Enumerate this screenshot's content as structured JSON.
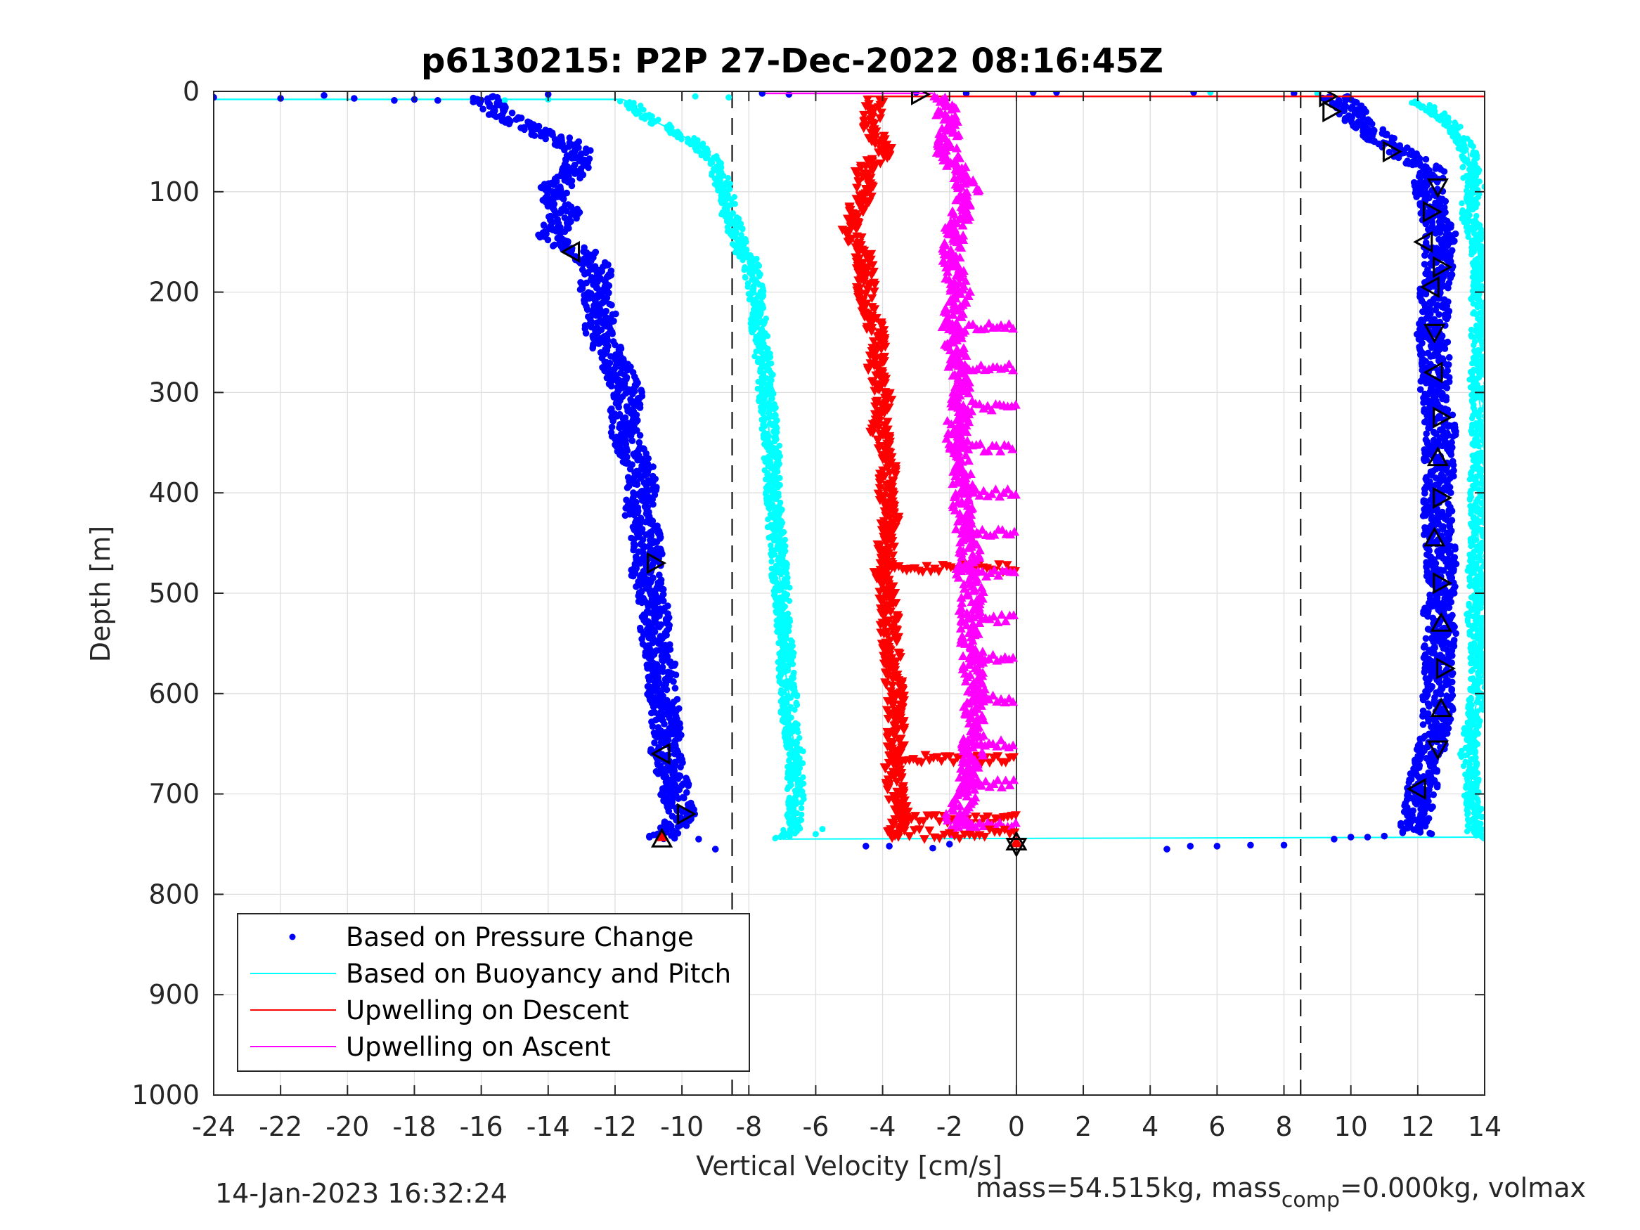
{
  "chart_data": {
    "type": "scatter",
    "title": "p6130215: P2P 27-Dec-2022 08:16:45Z",
    "xlabel": "Vertical Velocity [cm/s]",
    "ylabel": "Depth [m]",
    "xlim": [
      -24,
      14
    ],
    "ylim": [
      1000,
      0
    ],
    "y_reversed": true,
    "xticks": [
      -24,
      -22,
      -20,
      -18,
      -16,
      -14,
      -12,
      -10,
      -8,
      -6,
      -4,
      -2,
      0,
      2,
      4,
      6,
      8,
      10,
      12,
      14
    ],
    "yticks": [
      0,
      100,
      200,
      300,
      400,
      500,
      600,
      700,
      800,
      900,
      1000
    ],
    "grid": true,
    "legend_position": "bottom-left",
    "reference_lines": {
      "dashed_x": [
        -8.5,
        8.5
      ],
      "solid_x": [
        0
      ]
    },
    "colors": {
      "pressure": "#0000ff",
      "buoyancy": "#00ffff",
      "descent": "#ff0000",
      "ascent": "#ff00ff",
      "marker": "#000000"
    },
    "series": [
      {
        "name": "Based on Pressure Change",
        "style": "dots",
        "branches": [
          {
            "depth": [
              5,
              10,
              20,
              30,
              40,
              50,
              60,
              70,
              80,
              90,
              100,
              110,
              120,
              130,
              140,
              150,
              160,
              170,
              180,
              190,
              200,
              220,
              240,
              260,
              280,
              300,
              320,
              340,
              360,
              380,
              400,
              420,
              440,
              460,
              480,
              500,
              520,
              540,
              560,
              580,
              600,
              620,
              640,
              660,
              680,
              700,
              720,
              735,
              745
            ],
            "velocity": [
              -16.0,
              -15.8,
              -15.6,
              -15.0,
              -14.3,
              -13.5,
              -13.0,
              -13.1,
              -13.3,
              -13.6,
              -13.9,
              -13.7,
              -13.5,
              -13.6,
              -13.9,
              -13.8,
              -13.0,
              -12.7,
              -12.5,
              -12.6,
              -12.6,
              -12.4,
              -12.5,
              -12.2,
              -11.9,
              -11.6,
              -11.7,
              -11.7,
              -11.5,
              -11.2,
              -11.2,
              -11.3,
              -11.1,
              -11.0,
              -11.1,
              -10.9,
              -10.8,
              -10.8,
              -10.7,
              -10.6,
              -10.6,
              -10.5,
              -10.4,
              -10.5,
              -10.3,
              -10.2,
              -10.0,
              -10.3,
              -10.7
            ]
          },
          {
            "depth": [
              740,
              725,
              700,
              680,
              660,
              640,
              620,
              600,
              580,
              560,
              540,
              520,
              500,
              480,
              460,
              440,
              420,
              400,
              380,
              360,
              340,
              320,
              300,
              280,
              260,
              240,
              220,
              200,
              180,
              160,
              140,
              120,
              100,
              90,
              80,
              60,
              50,
              40,
              30,
              20,
              10,
              5
            ],
            "velocity": [
              12.0,
              11.9,
              12.1,
              12.2,
              12.4,
              12.5,
              12.6,
              12.6,
              12.6,
              12.6,
              12.7,
              12.6,
              12.7,
              12.7,
              12.7,
              12.6,
              12.6,
              12.6,
              12.7,
              12.6,
              12.7,
              12.6,
              12.5,
              12.5,
              12.5,
              12.4,
              12.5,
              12.5,
              12.6,
              12.6,
              12.7,
              12.5,
              12.3,
              12.3,
              12.4,
              11.5,
              11.0,
              10.6,
              10.2,
              10.0,
              9.8,
              9.5
            ]
          }
        ],
        "outliers": [
          [
            -24.0,
            6
          ],
          [
            -22.0,
            7
          ],
          [
            -20.7,
            4
          ],
          [
            -19.8,
            7
          ],
          [
            -18.6,
            9
          ],
          [
            -18.0,
            8
          ],
          [
            -17.3,
            9
          ],
          [
            -16.2,
            9
          ],
          [
            -14.0,
            3
          ],
          [
            -7.6,
            2
          ],
          [
            -6.8,
            3
          ],
          [
            -3.0,
            1
          ],
          [
            -1.5,
            2
          ],
          [
            0.5,
            1
          ],
          [
            1.2,
            1
          ],
          [
            5.3,
            1
          ],
          [
            8.3,
            2
          ],
          [
            -9.5,
            745
          ],
          [
            -9.0,
            755
          ],
          [
            -4.5,
            752
          ],
          [
            -3.8,
            752
          ],
          [
            -2.5,
            754
          ],
          [
            -2.0,
            750
          ],
          [
            4.5,
            755
          ],
          [
            5.2,
            752
          ],
          [
            6.0,
            752
          ],
          [
            7.0,
            751
          ],
          [
            8.0,
            751
          ],
          [
            9.5,
            745
          ],
          [
            10.0,
            743
          ],
          [
            10.5,
            743
          ],
          [
            11.0,
            742
          ]
        ]
      },
      {
        "name": "Based on Buoyancy and Pitch",
        "style": "line-with-dots",
        "branches": [
          {
            "depth": [
              8,
              8,
              10,
              20,
              30,
              40,
              50,
              60,
              80,
              100,
              120,
              140,
              160,
              170,
              180,
              200,
              220,
              240,
              260,
              280,
              300,
              320,
              340,
              360,
              380,
              400,
              420,
              440,
              460,
              480,
              500,
              520,
              540,
              560,
              580,
              600,
              620,
              640,
              660,
              680,
              700,
              720,
              735,
              745
            ],
            "velocity": [
              -24.0,
              -11.8,
              -11.6,
              -11.3,
              -10.8,
              -10.2,
              -9.7,
              -9.3,
              -8.9,
              -8.7,
              -8.6,
              -8.4,
              -8.2,
              -7.9,
              -7.9,
              -7.8,
              -7.7,
              -7.7,
              -7.6,
              -7.5,
              -7.5,
              -7.4,
              -7.4,
              -7.3,
              -7.3,
              -7.3,
              -7.2,
              -7.2,
              -7.1,
              -7.1,
              -7.0,
              -7.0,
              -6.9,
              -6.9,
              -6.9,
              -6.8,
              -6.8,
              -6.7,
              -6.6,
              -6.6,
              -6.6,
              -6.6,
              -6.7,
              -7.0
            ]
          },
          {
            "depth": [
              745,
              740,
              720,
              700,
              680,
              660,
              640,
              620,
              600,
              580,
              560,
              540,
              520,
              500,
              480,
              460,
              440,
              420,
              400,
              380,
              360,
              340,
              320,
              300,
              280,
              260,
              240,
              220,
              200,
              180,
              160,
              140,
              120,
              100,
              80,
              60,
              40,
              20,
              10,
              2
            ],
            "velocity": [
              14.0,
              13.7,
              13.7,
              13.6,
              13.6,
              13.5,
              13.6,
              13.7,
              13.8,
              13.8,
              13.8,
              13.8,
              13.7,
              13.8,
              13.7,
              13.8,
              13.8,
              13.8,
              13.8,
              13.8,
              13.9,
              13.8,
              13.9,
              13.8,
              13.8,
              13.9,
              13.8,
              13.9,
              13.8,
              13.9,
              13.8,
              13.7,
              13.5,
              13.6,
              13.6,
              13.5,
              13.2,
              12.5,
              12.0,
              12.0
            ]
          }
        ],
        "outliers": [
          [
            -15.3,
            9
          ],
          [
            -14.0,
            8
          ],
          [
            -9.6,
            5
          ],
          [
            -8.6,
            6
          ],
          [
            5.8,
            1
          ],
          [
            9.0,
            2
          ],
          [
            14.0,
            95
          ],
          [
            14.1,
            135
          ],
          [
            13.9,
            360
          ],
          [
            14.0,
            430
          ],
          [
            13.9,
            560
          ],
          [
            13.8,
            640
          ],
          [
            -5.8,
            735
          ],
          [
            -6.0,
            740
          ]
        ]
      },
      {
        "name": "Upwelling on Descent",
        "style": "down-triangles",
        "depth": [
          8,
          20,
          40,
          60,
          80,
          100,
          120,
          140,
          160,
          180,
          200,
          220,
          240,
          260,
          280,
          300,
          320,
          340,
          360,
          380,
          400,
          420,
          440,
          460,
          480,
          500,
          520,
          540,
          560,
          580,
          600,
          620,
          640,
          660,
          680,
          700,
          720,
          740
        ],
        "velocity": [
          -4.2,
          -4.3,
          -4.3,
          -3.9,
          -4.6,
          -4.5,
          -4.8,
          -5.0,
          -4.6,
          -4.5,
          -4.5,
          -4.4,
          -4.2,
          -4.1,
          -4.2,
          -4.0,
          -4.0,
          -4.1,
          -3.9,
          -3.8,
          -3.9,
          -3.7,
          -3.9,
          -3.9,
          -4.0,
          -3.9,
          -3.8,
          -3.8,
          -3.7,
          -3.7,
          -3.6,
          -3.6,
          -3.6,
          -3.6,
          -3.7,
          -3.6,
          -3.5,
          -3.6
        ],
        "spikes": [
          [
            475,
            -4.0,
            0
          ],
          [
            665,
            -3.8,
            0
          ],
          [
            725,
            -3.5,
            0
          ]
        ],
        "top_line": {
          "depth": 5,
          "x_from": -4.5,
          "x_to": 14
        }
      },
      {
        "name": "Upwelling on Ascent",
        "style": "up-triangles",
        "depth": [
          5,
          20,
          40,
          60,
          80,
          100,
          120,
          140,
          160,
          180,
          200,
          220,
          240,
          260,
          280,
          300,
          320,
          340,
          360,
          380,
          400,
          420,
          440,
          460,
          480,
          500,
          520,
          540,
          560,
          580,
          600,
          620,
          640,
          660,
          680,
          700,
          720,
          740
        ],
        "velocity": [
          -2.2,
          -2.1,
          -2.0,
          -2.1,
          -1.7,
          -1.4,
          -1.6,
          -1.9,
          -1.9,
          -1.9,
          -1.7,
          -1.9,
          -1.9,
          -1.8,
          -1.7,
          -1.6,
          -1.7,
          -1.8,
          -1.7,
          -1.6,
          -1.6,
          -1.6,
          -1.5,
          -1.4,
          -1.5,
          -1.3,
          -1.4,
          -1.4,
          -1.3,
          -1.3,
          -1.2,
          -1.3,
          -1.3,
          -1.3,
          -1.4,
          -1.5,
          -1.8,
          -1.6
        ],
        "spikes": [
          [
            235,
            -1.9,
            0
          ],
          [
            275,
            -1.9,
            0
          ],
          [
            315,
            -1.7,
            0
          ],
          [
            355,
            -1.8,
            0
          ],
          [
            400,
            -1.7,
            0
          ],
          [
            440,
            -1.5,
            0
          ],
          [
            480,
            -1.5,
            0
          ],
          [
            525,
            -1.4,
            0
          ],
          [
            565,
            -1.3,
            0
          ],
          [
            605,
            -1.3,
            0
          ],
          [
            650,
            -1.3,
            0
          ],
          [
            690,
            -1.4,
            0
          ],
          [
            730,
            -1.7,
            0
          ]
        ],
        "top_line": {
          "depth": 2,
          "x_from": -7.5,
          "x_to": -2.5
        }
      }
    ],
    "markers": [
      {
        "shape": "right",
        "velocity": -10.8,
        "depth": 470
      },
      {
        "shape": "left",
        "velocity": -13.3,
        "depth": 160
      },
      {
        "shape": "left",
        "velocity": -10.6,
        "depth": 660
      },
      {
        "shape": "right",
        "velocity": -9.9,
        "depth": 720
      },
      {
        "shape": "up",
        "velocity": -10.6,
        "depth": 745
      },
      {
        "shape": "right",
        "velocity": -2.9,
        "depth": 3
      },
      {
        "shape": "up",
        "velocity": 0.0,
        "depth": 748
      },
      {
        "shape": "down",
        "velocity": 0.0,
        "depth": 752
      },
      {
        "shape": "right",
        "velocity": 9.3,
        "depth": 5
      },
      {
        "shape": "right",
        "velocity": 9.4,
        "depth": 20
      },
      {
        "shape": "right",
        "velocity": 11.2,
        "depth": 60
      },
      {
        "shape": "down",
        "velocity": 12.6,
        "depth": 95
      },
      {
        "shape": "right",
        "velocity": 12.4,
        "depth": 120
      },
      {
        "shape": "left",
        "velocity": 12.2,
        "depth": 150
      },
      {
        "shape": "right",
        "velocity": 12.7,
        "depth": 175
      },
      {
        "shape": "left",
        "velocity": 12.4,
        "depth": 195
      },
      {
        "shape": "down",
        "velocity": 12.5,
        "depth": 240
      },
      {
        "shape": "left",
        "velocity": 12.5,
        "depth": 280
      },
      {
        "shape": "right",
        "velocity": 12.7,
        "depth": 325
      },
      {
        "shape": "up",
        "velocity": 12.6,
        "depth": 365
      },
      {
        "shape": "right",
        "velocity": 12.7,
        "depth": 405
      },
      {
        "shape": "up",
        "velocity": 12.5,
        "depth": 445
      },
      {
        "shape": "right",
        "velocity": 12.7,
        "depth": 490
      },
      {
        "shape": "up",
        "velocity": 12.7,
        "depth": 530
      },
      {
        "shape": "right",
        "velocity": 12.8,
        "depth": 575
      },
      {
        "shape": "up",
        "velocity": 12.7,
        "depth": 615
      },
      {
        "shape": "down",
        "velocity": 12.6,
        "depth": 655
      },
      {
        "shape": "left",
        "velocity": 12.0,
        "depth": 695
      }
    ]
  },
  "footer": {
    "timestamp": "14-Jan-2023 16:32:24",
    "mass_prefix": "mass=54.515kg, mass",
    "mass_sub": "comp",
    "mass_suffix": "=0.000kg, volmax"
  }
}
